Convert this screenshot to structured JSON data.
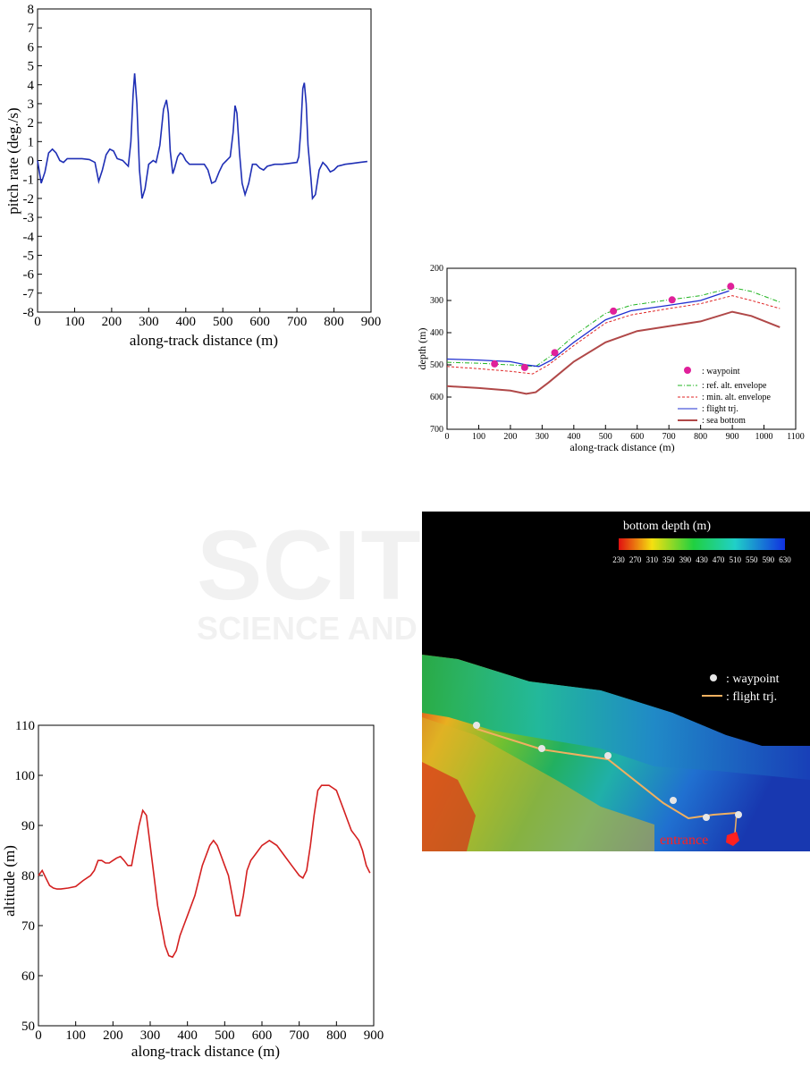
{
  "chart_data": [
    {
      "type": "line",
      "xlabel": "along-track distance (m)",
      "ylabel": "pitch rate (deg./s)",
      "xlim": [
        0,
        900
      ],
      "ylim": [
        -8,
        8
      ],
      "xticks": [
        "0",
        "100",
        "200",
        "300",
        "400",
        "500",
        "600",
        "700",
        "800",
        "900"
      ],
      "yticks": [
        "-8",
        "-7",
        "-6",
        "-5",
        "-4",
        "-3",
        "-2",
        "-1",
        "0",
        "1",
        "2",
        "3",
        "4",
        "5",
        "6",
        "7",
        "8"
      ],
      "colors": {
        "line": "#1f2fb5"
      },
      "series": [
        {
          "x": [
            0,
            10,
            20,
            30,
            40,
            50,
            60,
            70,
            80,
            100,
            120,
            140,
            155,
            165,
            175,
            185,
            195,
            205,
            215,
            230,
            245,
            252,
            258,
            262,
            268,
            275,
            282,
            290,
            300,
            312,
            320,
            330,
            340,
            348,
            353,
            358,
            365,
            370,
            378,
            385,
            392,
            400,
            410,
            430,
            450,
            460,
            470,
            480,
            490,
            500,
            510,
            520,
            528,
            533,
            538,
            545,
            552,
            560,
            570,
            580,
            590,
            600,
            610,
            620,
            640,
            660,
            680,
            700,
            705,
            710,
            716,
            720,
            725,
            730,
            738,
            742,
            750,
            760,
            770,
            780,
            790,
            800,
            810,
            830,
            850,
            870,
            890
          ],
          "y": [
            0,
            -1.2,
            -0.6,
            0.4,
            0.6,
            0.4,
            0,
            -0.1,
            0.1,
            0.1,
            0.1,
            0.05,
            -0.1,
            -1.1,
            -0.5,
            0.3,
            0.6,
            0.5,
            0.1,
            0,
            -0.3,
            1.0,
            3.5,
            4.6,
            3.0,
            -0.5,
            -2.0,
            -1.5,
            -0.2,
            0,
            -0.1,
            0.8,
            2.7,
            3.2,
            2.5,
            0.5,
            -0.7,
            -0.4,
            0.2,
            0.4,
            0.3,
            0,
            -0.2,
            -0.2,
            -0.2,
            -0.5,
            -1.2,
            -1.1,
            -0.6,
            -0.2,
            0,
            0.2,
            1.5,
            2.9,
            2.5,
            0.4,
            -1.2,
            -1.8,
            -1.2,
            -0.2,
            -0.2,
            -0.4,
            -0.5,
            -0.3,
            -0.2,
            -0.2,
            -0.15,
            -0.1,
            0.2,
            1.5,
            3.8,
            4.1,
            3.0,
            0.8,
            -1.0,
            -2.0,
            -1.8,
            -0.5,
            -0.1,
            -0.3,
            -0.6,
            -0.5,
            -0.3,
            -0.2,
            -0.15,
            -0.1,
            -0.05
          ]
        }
      ]
    },
    {
      "type": "line",
      "xlabel": "along-track distance (m)",
      "ylabel": "depth (m)",
      "xlim": [
        0,
        1100
      ],
      "ylim": [
        700,
        200
      ],
      "xticks": [
        "0",
        "100",
        "200",
        "300",
        "400",
        "500",
        "600",
        "700",
        "800",
        "900",
        "1000",
        "1100"
      ],
      "yticks": [
        "200",
        "300",
        "400",
        "500",
        "600",
        "700"
      ],
      "legend": ": waypoint",
      "colors": {
        "waypoint": "#e0209a",
        "ref": "#22b522",
        "min": "#e02525",
        "flight": "#1f2fd0",
        "bottom": "#b04848"
      },
      "waypoints": {
        "name": ": waypoint",
        "x": [
          150,
          245,
          340,
          525,
          710,
          895
        ],
        "y": [
          497,
          508,
          462,
          333,
          298,
          256
        ]
      },
      "series": [
        {
          "name": ": ref. alt. envelope",
          "x": [
            0,
            100,
            200,
            280,
            330,
            400,
            500,
            580,
            700,
            800,
            900,
            960,
            1050
          ],
          "y": [
            492,
            495,
            500,
            505,
            470,
            410,
            340,
            315,
            298,
            285,
            260,
            272,
            305
          ]
        },
        {
          "name": ": min. alt. envelope",
          "x": [
            0,
            100,
            200,
            270,
            320,
            400,
            500,
            580,
            700,
            800,
            900,
            960,
            1050
          ],
          "y": [
            505,
            512,
            520,
            528,
            500,
            440,
            370,
            345,
            325,
            310,
            285,
            300,
            325
          ]
        },
        {
          "name": ": flight trj.",
          "x": [
            0,
            100,
            200,
            250,
            290,
            330,
            400,
            500,
            580,
            700,
            800,
            890
          ],
          "y": [
            482,
            485,
            490,
            500,
            505,
            485,
            430,
            360,
            332,
            315,
            300,
            270
          ]
        },
        {
          "name": ": sea bottom",
          "x": [
            0,
            100,
            200,
            250,
            280,
            320,
            400,
            500,
            600,
            700,
            800,
            900,
            960,
            1050
          ],
          "y": [
            566,
            572,
            580,
            590,
            585,
            555,
            490,
            430,
            395,
            380,
            365,
            335,
            348,
            383
          ]
        }
      ]
    },
    {
      "type": "heatmap",
      "title": "bottom depth (m)",
      "colorbar_ticks": [
        "230",
        "270",
        "310",
        "350",
        "390",
        "430",
        "470",
        "510",
        "550",
        "590",
        "630"
      ],
      "legend": [
        ": waypoint",
        ": flight trj."
      ],
      "annotation": "entrance"
    },
    {
      "type": "line",
      "xlabel": "along-track distance (m)",
      "ylabel": "altitude (m)",
      "xlim": [
        0,
        900
      ],
      "ylim": [
        50,
        110
      ],
      "xticks": [
        "0",
        "100",
        "200",
        "300",
        "400",
        "500",
        "600",
        "700",
        "800",
        "900"
      ],
      "yticks": [
        "50",
        "60",
        "70",
        "80",
        "90",
        "100",
        "110"
      ],
      "colors": {
        "line": "#d42020"
      },
      "series": [
        {
          "x": [
            0,
            10,
            20,
            30,
            40,
            50,
            60,
            80,
            100,
            120,
            140,
            150,
            160,
            170,
            180,
            190,
            200,
            210,
            220,
            230,
            240,
            250,
            260,
            270,
            280,
            290,
            300,
            310,
            320,
            330,
            340,
            350,
            360,
            370,
            380,
            390,
            400,
            420,
            440,
            460,
            470,
            480,
            490,
            500,
            510,
            520,
            530,
            540,
            550,
            560,
            570,
            580,
            600,
            620,
            640,
            660,
            680,
            700,
            710,
            720,
            730,
            740,
            750,
            760,
            780,
            790,
            800,
            810,
            820,
            830,
            840,
            850,
            860,
            870,
            880,
            890
          ],
          "y": [
            80,
            81,
            79.5,
            78,
            77.5,
            77.3,
            77.3,
            77.5,
            77.8,
            79,
            80,
            81,
            83,
            83,
            82.5,
            82.5,
            83,
            83.5,
            83.8,
            83,
            82,
            82,
            86,
            90,
            93,
            92,
            86,
            80,
            74,
            70,
            66,
            64,
            63.7,
            65,
            68,
            70,
            72,
            76,
            82,
            86,
            87,
            86,
            84,
            82,
            80,
            76,
            72,
            72,
            76,
            81,
            83,
            84,
            86,
            87,
            86,
            84,
            82,
            80,
            79.5,
            81,
            86,
            92,
            97,
            98,
            98,
            97.5,
            97,
            95,
            93,
            91,
            89,
            88,
            87,
            85,
            82,
            80.5
          ]
        }
      ]
    }
  ]
}
